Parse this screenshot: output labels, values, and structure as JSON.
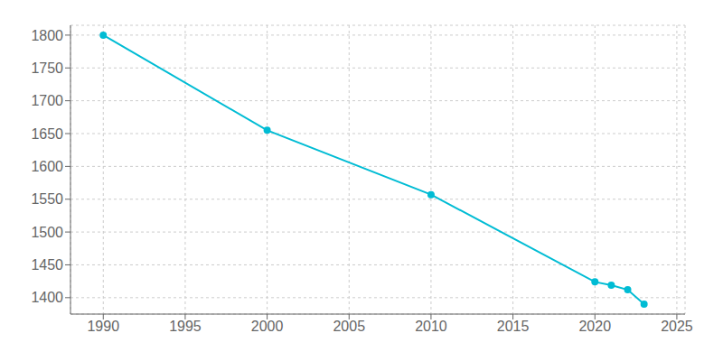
{
  "chart_data": {
    "type": "line",
    "x": [
      1990,
      2000,
      2010,
      2020,
      2021,
      2022,
      2023
    ],
    "values": [
      1800,
      1655,
      1557,
      1424,
      1419,
      1412,
      1390
    ],
    "color": "#00BCD4",
    "marker": "circle",
    "xlim": [
      1988,
      2025.5
    ],
    "ylim": [
      1375,
      1815
    ],
    "xticks": [
      1990,
      1995,
      2000,
      2005,
      2010,
      2015,
      2020,
      2025
    ],
    "yticks": [
      1400,
      1450,
      1500,
      1550,
      1600,
      1650,
      1700,
      1750,
      1800
    ],
    "grid": true
  }
}
